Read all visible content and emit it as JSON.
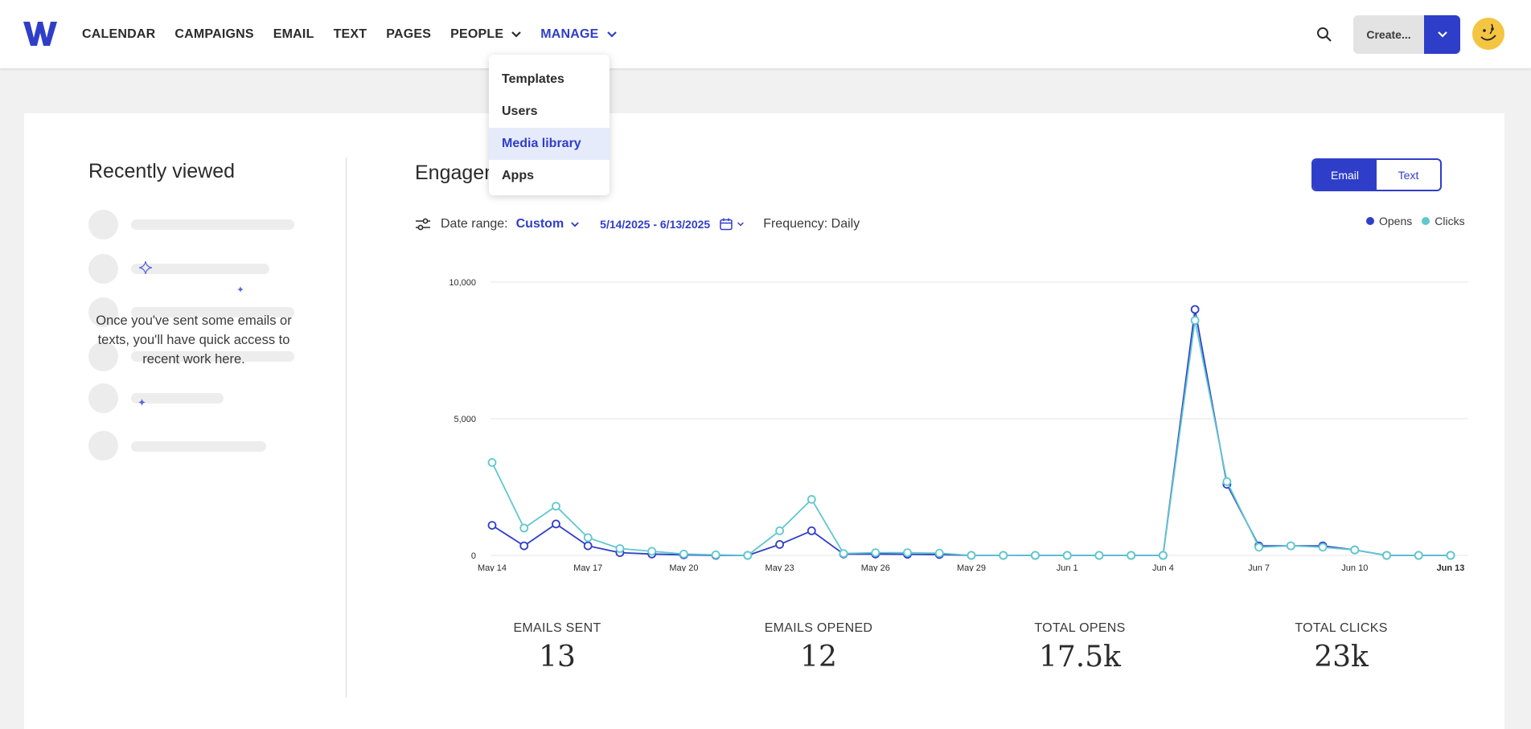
{
  "nav": {
    "items": [
      {
        "label": "CALENDAR"
      },
      {
        "label": "CAMPAIGNS"
      },
      {
        "label": "EMAIL"
      },
      {
        "label": "TEXT"
      },
      {
        "label": "PAGES"
      },
      {
        "label": "PEOPLE"
      },
      {
        "label": "MANAGE"
      }
    ],
    "create_label": "Create...",
    "accent": "#2f3ec9"
  },
  "manage_menu": {
    "items": [
      "Templates",
      "Users",
      "Media library",
      "Apps"
    ],
    "hovered": "Media library"
  },
  "recent": {
    "title": "Recently viewed",
    "message": "Once you've sent some emails or texts, you'll have quick access to recent work here."
  },
  "engagement": {
    "title": "Engagement",
    "toggle": {
      "options": [
        "Email",
        "Text"
      ],
      "selected": "Email"
    },
    "date_range_label": "Date range:",
    "date_range_value": "Custom",
    "dates": "5/14/2025 - 6/13/2025",
    "frequency": "Frequency: Daily",
    "legend": [
      {
        "name": "Opens",
        "color": "#2f3ec9"
      },
      {
        "name": "Clicks",
        "color": "#5fc8cf"
      }
    ]
  },
  "chart_data": {
    "type": "line",
    "x": [
      "May 14",
      "May 15",
      "May 16",
      "May 17",
      "May 18",
      "May 19",
      "May 20",
      "May 21",
      "May 22",
      "May 23",
      "May 24",
      "May 25",
      "May 26",
      "May 27",
      "May 28",
      "May 29",
      "May 30",
      "May 31",
      "Jun 1",
      "Jun 2",
      "Jun 3",
      "Jun 4",
      "Jun 5",
      "Jun 6",
      "Jun 7",
      "Jun 8",
      "Jun 9",
      "Jun 10",
      "Jun 11",
      "Jun 12",
      "Jun 13"
    ],
    "tick_labels": [
      "May 14",
      "May 17",
      "May 20",
      "May 23",
      "May 26",
      "May 29",
      "Jun 1",
      "Jun 4",
      "Jun 7",
      "Jun 10",
      "Jun 13"
    ],
    "y_ticks": [
      "0",
      "5,000",
      "10,000"
    ],
    "ylim": [
      0,
      10000
    ],
    "grid": true,
    "legend_position": "top-right",
    "series": [
      {
        "name": "Opens",
        "color": "#2f3ec9",
        "values": [
          1100,
          350,
          1150,
          350,
          100,
          50,
          20,
          0,
          0,
          400,
          900,
          50,
          50,
          40,
          30,
          0,
          0,
          0,
          0,
          0,
          0,
          0,
          9000,
          2600,
          350,
          350,
          350,
          200,
          0,
          0,
          0
        ]
      },
      {
        "name": "Clicks",
        "color": "#5fc8cf",
        "values": [
          3400,
          1000,
          1800,
          650,
          250,
          150,
          50,
          20,
          0,
          900,
          2050,
          70,
          100,
          100,
          80,
          0,
          0,
          0,
          0,
          0,
          0,
          0,
          8600,
          2700,
          300,
          350,
          300,
          200,
          0,
          0,
          0
        ]
      }
    ]
  },
  "stats": [
    {
      "label": "EMAILS SENT",
      "value": "13"
    },
    {
      "label": "EMAILS OPENED",
      "value": "12"
    },
    {
      "label": "TOTAL OPENS",
      "value": "17.5k"
    },
    {
      "label": "TOTAL CLICKS",
      "value": "23k"
    }
  ]
}
